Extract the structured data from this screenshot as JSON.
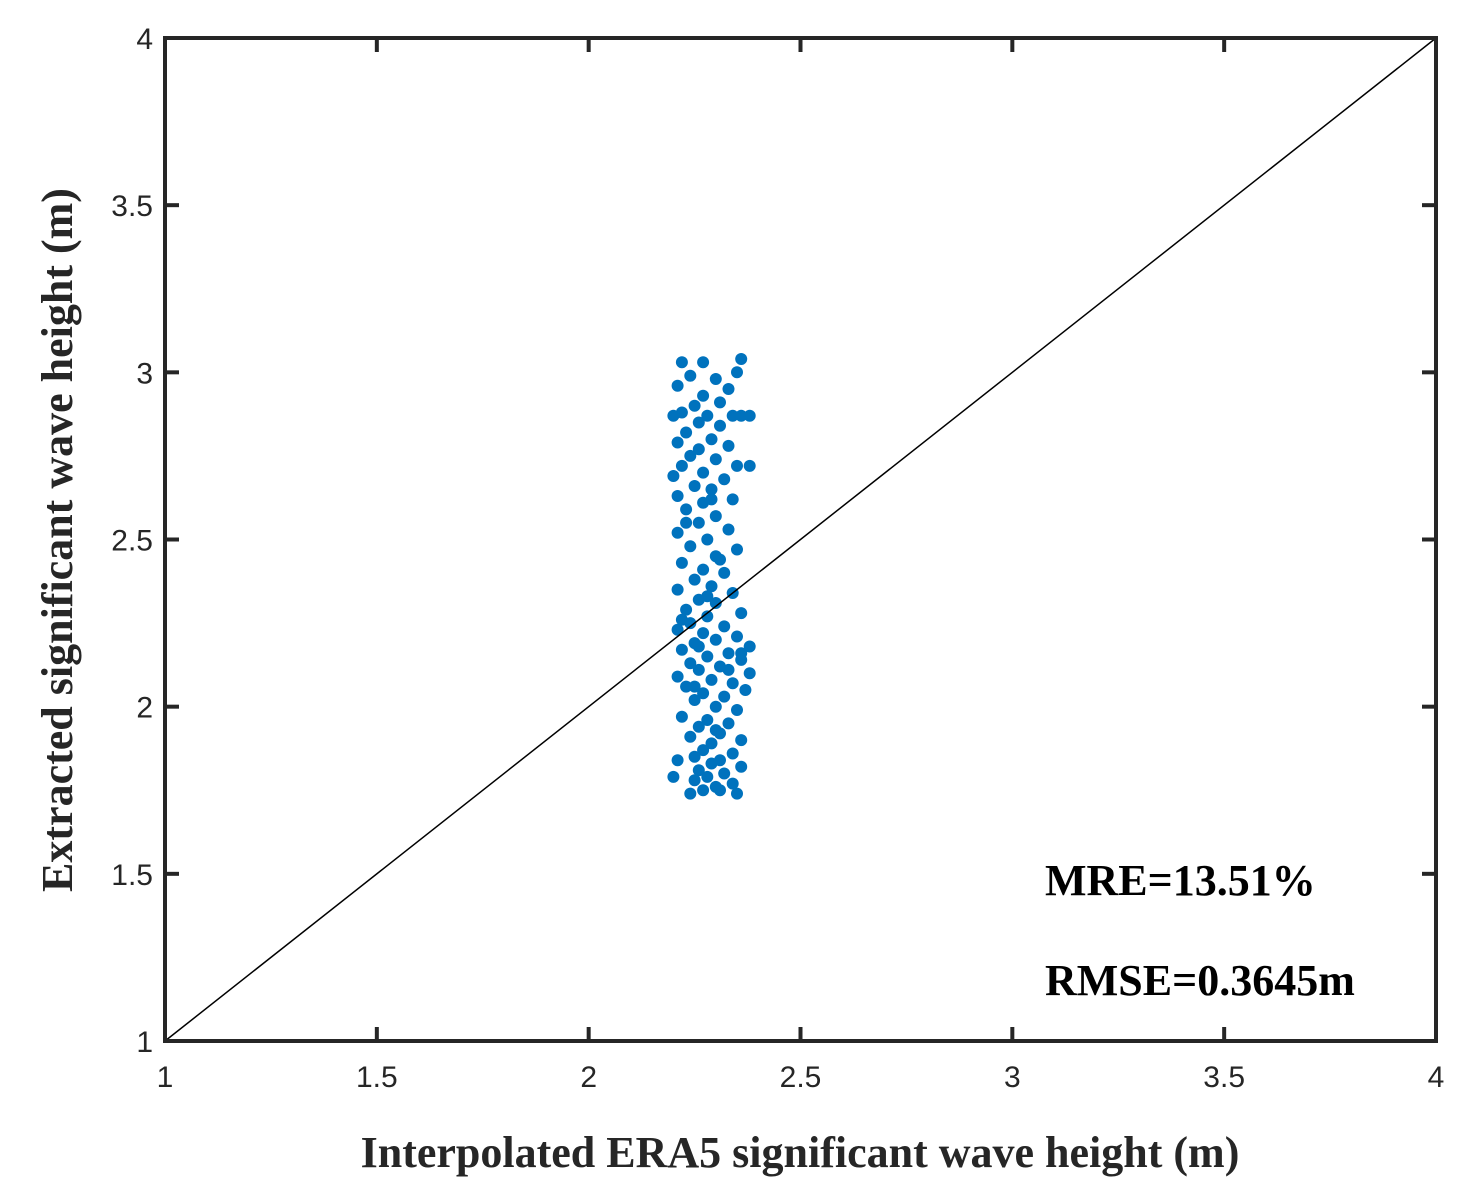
{
  "chart_data": {
    "type": "scatter",
    "xlabel": "Interpolated ERA5 significant wave height (m)",
    "ylabel": "Extracted significant wave height (m)",
    "xlim": [
      1,
      4
    ],
    "ylim": [
      1,
      4
    ],
    "xticks": [
      "1",
      "1.5",
      "2",
      "2.5",
      "3",
      "3.5",
      "4"
    ],
    "yticks": [
      "1",
      "1.5",
      "2",
      "2.5",
      "3",
      "3.5",
      "4"
    ],
    "grid": false,
    "box": true,
    "reference_line": {
      "type": "y=x",
      "from": [
        1,
        1
      ],
      "to": [
        4,
        4
      ],
      "color": "#000000"
    },
    "annotations": [
      "MRE=13.51%",
      "RMSE=0.3645m"
    ],
    "series": [
      {
        "color": "#0072BD",
        "points": [
          [
            2.27,
            3.03
          ],
          [
            2.22,
            3.03
          ],
          [
            2.36,
            3.04
          ],
          [
            2.35,
            3.0
          ],
          [
            2.3,
            2.98
          ],
          [
            2.24,
            2.99
          ],
          [
            2.21,
            2.96
          ],
          [
            2.33,
            2.95
          ],
          [
            2.27,
            2.93
          ],
          [
            2.31,
            2.91
          ],
          [
            2.25,
            2.9
          ],
          [
            2.22,
            2.88
          ],
          [
            2.28,
            2.87
          ],
          [
            2.34,
            2.87
          ],
          [
            2.38,
            2.87
          ],
          [
            2.36,
            2.87
          ],
          [
            2.2,
            2.87
          ],
          [
            2.26,
            2.85
          ],
          [
            2.31,
            2.84
          ],
          [
            2.23,
            2.82
          ],
          [
            2.29,
            2.8
          ],
          [
            2.21,
            2.79
          ],
          [
            2.33,
            2.78
          ],
          [
            2.26,
            2.77
          ],
          [
            2.24,
            2.75
          ],
          [
            2.3,
            2.74
          ],
          [
            2.38,
            2.72
          ],
          [
            2.35,
            2.72
          ],
          [
            2.22,
            2.72
          ],
          [
            2.27,
            2.7
          ],
          [
            2.2,
            2.69
          ],
          [
            2.32,
            2.68
          ],
          [
            2.25,
            2.66
          ],
          [
            2.29,
            2.65
          ],
          [
            2.21,
            2.63
          ],
          [
            2.34,
            2.62
          ],
          [
            2.27,
            2.61
          ],
          [
            2.23,
            2.59
          ],
          [
            2.3,
            2.57
          ],
          [
            2.26,
            2.55
          ],
          [
            2.33,
            2.53
          ],
          [
            2.21,
            2.52
          ],
          [
            2.28,
            2.5
          ],
          [
            2.24,
            2.48
          ],
          [
            2.35,
            2.47
          ],
          [
            2.3,
            2.45
          ],
          [
            2.22,
            2.43
          ],
          [
            2.27,
            2.41
          ],
          [
            2.32,
            2.4
          ],
          [
            2.25,
            2.38
          ],
          [
            2.29,
            2.36
          ],
          [
            2.21,
            2.35
          ],
          [
            2.34,
            2.34
          ],
          [
            2.26,
            2.32
          ],
          [
            2.3,
            2.31
          ],
          [
            2.23,
            2.29
          ],
          [
            2.36,
            2.28
          ],
          [
            2.28,
            2.27
          ],
          [
            2.24,
            2.25
          ],
          [
            2.32,
            2.24
          ],
          [
            2.21,
            2.23
          ],
          [
            2.27,
            2.22
          ],
          [
            2.35,
            2.21
          ],
          [
            2.3,
            2.2
          ],
          [
            2.25,
            2.19
          ],
          [
            2.38,
            2.18
          ],
          [
            2.22,
            2.17
          ],
          [
            2.33,
            2.16
          ],
          [
            2.28,
            2.15
          ],
          [
            2.36,
            2.14
          ],
          [
            2.24,
            2.13
          ],
          [
            2.31,
            2.12
          ],
          [
            2.26,
            2.11
          ],
          [
            2.38,
            2.1
          ],
          [
            2.21,
            2.09
          ],
          [
            2.29,
            2.08
          ],
          [
            2.34,
            2.07
          ],
          [
            2.23,
            2.06
          ],
          [
            2.37,
            2.05
          ],
          [
            2.27,
            2.04
          ],
          [
            2.32,
            2.03
          ],
          [
            2.25,
            2.02
          ],
          [
            2.3,
            2.0
          ],
          [
            2.35,
            1.99
          ],
          [
            2.22,
            1.97
          ],
          [
            2.28,
            1.96
          ],
          [
            2.33,
            1.95
          ],
          [
            2.26,
            1.94
          ],
          [
            2.31,
            1.92
          ],
          [
            2.24,
            1.91
          ],
          [
            2.36,
            1.9
          ],
          [
            2.29,
            1.89
          ],
          [
            2.27,
            1.87
          ],
          [
            2.34,
            1.86
          ],
          [
            2.25,
            1.85
          ],
          [
            2.31,
            1.84
          ],
          [
            2.21,
            1.84
          ],
          [
            2.29,
            1.83
          ],
          [
            2.36,
            1.82
          ],
          [
            2.26,
            1.81
          ],
          [
            2.32,
            1.8
          ],
          [
            2.28,
            1.79
          ],
          [
            2.25,
            1.78
          ],
          [
            2.34,
            1.77
          ],
          [
            2.3,
            1.76
          ],
          [
            2.27,
            1.75
          ],
          [
            2.24,
            1.74
          ],
          [
            2.35,
            1.74
          ],
          [
            2.31,
            1.75
          ],
          [
            2.2,
            1.79
          ],
          [
            2.23,
            2.55
          ],
          [
            2.29,
            2.62
          ],
          [
            2.31,
            2.44
          ],
          [
            2.26,
            2.18
          ],
          [
            2.33,
            2.11
          ],
          [
            2.28,
            2.33
          ],
          [
            2.22,
            2.26
          ],
          [
            2.36,
            2.16
          ],
          [
            2.3,
            1.93
          ],
          [
            2.25,
            2.06
          ]
        ]
      }
    ]
  }
}
